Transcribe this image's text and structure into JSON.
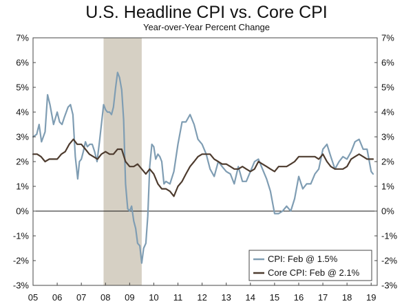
{
  "chart_data": {
    "type": "line",
    "title": "U.S. Headline CPI vs. Core CPI",
    "subtitle": "Year-over-Year Percent Change",
    "xlabel": "",
    "ylabel": "",
    "xlim": [
      2005.0,
      2019.25
    ],
    "ylim": [
      -3,
      7
    ],
    "y_ticks": [
      7,
      6,
      5,
      4,
      3,
      2,
      1,
      0,
      -1,
      -2,
      -3
    ],
    "y_tick_labels_left": [
      "7%",
      "6%",
      "5%",
      "4%",
      "3%",
      "2%",
      "1%",
      "0%",
      "-1%",
      "-2%",
      "-3%"
    ],
    "y_tick_labels_right": [
      "7%",
      "6%",
      "5%",
      "4%",
      "3%",
      "2%",
      "1%",
      "0%",
      "-1%",
      "-2%",
      "-3%"
    ],
    "x_ticks": [
      2005,
      2006,
      2007,
      2008,
      2009,
      2010,
      2011,
      2012,
      2013,
      2014,
      2015,
      2016,
      2017,
      2018,
      2019
    ],
    "x_tick_labels": [
      "05",
      "06",
      "07",
      "08",
      "09",
      "10",
      "11",
      "12",
      "13",
      "14",
      "15",
      "16",
      "17",
      "18",
      "19"
    ],
    "recession": {
      "start": 2007.92,
      "end": 2009.5,
      "color": "#d6d0c4"
    },
    "legend_position": "bottom-right",
    "series": [
      {
        "name": "CPI: Feb @ 1.5%",
        "color": "#7f9db3",
        "x": [
          2005.0,
          2005.15,
          2005.25,
          2005.35,
          2005.5,
          2005.6,
          2005.7,
          2005.85,
          2006.0,
          2006.1,
          2006.2,
          2006.3,
          2006.45,
          2006.55,
          2006.65,
          2006.75,
          2006.85,
          2006.92,
          2007.0,
          2007.08,
          2007.17,
          2007.25,
          2007.35,
          2007.45,
          2007.55,
          2007.65,
          2007.75,
          2007.83,
          2007.92,
          2008.0,
          2008.08,
          2008.17,
          2008.25,
          2008.33,
          2008.42,
          2008.5,
          2008.58,
          2008.67,
          2008.75,
          2008.83,
          2008.92,
          2009.0,
          2009.08,
          2009.17,
          2009.25,
          2009.33,
          2009.42,
          2009.5,
          2009.58,
          2009.67,
          2009.75,
          2009.83,
          2009.92,
          2010.0,
          2010.08,
          2010.17,
          2010.25,
          2010.33,
          2010.42,
          2010.5,
          2010.67,
          2010.83,
          2011.0,
          2011.17,
          2011.33,
          2011.5,
          2011.67,
          2011.83,
          2012.0,
          2012.17,
          2012.33,
          2012.5,
          2012.67,
          2012.83,
          2013.0,
          2013.17,
          2013.33,
          2013.5,
          2013.67,
          2013.83,
          2014.0,
          2014.17,
          2014.33,
          2014.5,
          2014.67,
          2014.83,
          2015.0,
          2015.17,
          2015.33,
          2015.5,
          2015.67,
          2015.83,
          2016.0,
          2016.17,
          2016.33,
          2016.5,
          2016.67,
          2016.83,
          2017.0,
          2017.17,
          2017.33,
          2017.5,
          2017.67,
          2017.83,
          2018.0,
          2018.17,
          2018.33,
          2018.5,
          2018.67,
          2018.83,
          2019.0,
          2019.08
        ],
        "values": [
          3.0,
          3.1,
          3.5,
          2.8,
          3.2,
          4.7,
          4.3,
          3.5,
          4.0,
          3.6,
          3.5,
          3.8,
          4.2,
          4.3,
          3.9,
          2.2,
          1.3,
          2.0,
          2.1,
          2.4,
          2.8,
          2.6,
          2.7,
          2.7,
          2.4,
          2.0,
          2.8,
          3.5,
          4.3,
          4.1,
          4.0,
          4.0,
          3.9,
          4.2,
          5.0,
          5.6,
          5.4,
          4.9,
          3.7,
          1.1,
          0.1,
          0.0,
          0.2,
          -0.4,
          -0.7,
          -1.3,
          -1.4,
          -2.1,
          -1.5,
          -1.3,
          -0.2,
          1.8,
          2.7,
          2.6,
          2.1,
          2.3,
          2.2,
          2.0,
          1.1,
          1.2,
          1.1,
          1.6,
          2.7,
          3.6,
          3.6,
          3.9,
          3.5,
          2.9,
          2.7,
          2.3,
          1.7,
          1.4,
          2.0,
          1.8,
          1.6,
          1.5,
          1.1,
          1.8,
          1.2,
          1.2,
          1.6,
          2.0,
          2.1,
          1.7,
          1.3,
          0.8,
          -0.1,
          -0.1,
          0.0,
          0.2,
          0.0,
          0.5,
          1.4,
          0.9,
          1.1,
          1.1,
          1.5,
          1.7,
          2.5,
          2.7,
          2.2,
          1.7,
          2.0,
          2.2,
          2.1,
          2.4,
          2.8,
          2.9,
          2.5,
          2.5,
          1.6,
          1.5
        ]
      },
      {
        "name": "Core CPI: Feb @ 2.1%",
        "color": "#4d3b2e",
        "x": [
          2005.0,
          2005.17,
          2005.33,
          2005.5,
          2005.67,
          2005.83,
          2006.0,
          2006.17,
          2006.33,
          2006.5,
          2006.67,
          2006.83,
          2007.0,
          2007.17,
          2007.33,
          2007.5,
          2007.67,
          2007.83,
          2008.0,
          2008.17,
          2008.33,
          2008.5,
          2008.67,
          2008.83,
          2009.0,
          2009.17,
          2009.33,
          2009.5,
          2009.67,
          2009.83,
          2010.0,
          2010.17,
          2010.33,
          2010.5,
          2010.67,
          2010.83,
          2011.0,
          2011.17,
          2011.33,
          2011.5,
          2011.67,
          2011.83,
          2012.0,
          2012.17,
          2012.33,
          2012.5,
          2012.67,
          2012.83,
          2013.0,
          2013.17,
          2013.33,
          2013.5,
          2013.67,
          2013.83,
          2014.0,
          2014.17,
          2014.33,
          2014.5,
          2014.67,
          2014.83,
          2015.0,
          2015.17,
          2015.33,
          2015.5,
          2015.67,
          2015.83,
          2016.0,
          2016.17,
          2016.33,
          2016.5,
          2016.67,
          2016.83,
          2017.0,
          2017.17,
          2017.33,
          2017.5,
          2017.67,
          2017.83,
          2018.0,
          2018.17,
          2018.33,
          2018.5,
          2018.67,
          2018.83,
          2019.0,
          2019.08
        ],
        "values": [
          2.3,
          2.3,
          2.2,
          2.0,
          2.1,
          2.1,
          2.1,
          2.3,
          2.4,
          2.7,
          2.9,
          2.7,
          2.7,
          2.5,
          2.3,
          2.2,
          2.1,
          2.3,
          2.4,
          2.3,
          2.3,
          2.5,
          2.5,
          2.0,
          1.8,
          1.8,
          1.9,
          1.7,
          1.5,
          1.7,
          1.5,
          1.1,
          0.9,
          0.9,
          0.8,
          0.6,
          1.0,
          1.2,
          1.5,
          1.8,
          2.0,
          2.2,
          2.3,
          2.3,
          2.3,
          2.1,
          2.0,
          1.9,
          1.9,
          1.8,
          1.7,
          1.7,
          1.8,
          1.7,
          1.6,
          1.7,
          2.0,
          1.9,
          1.8,
          1.7,
          1.6,
          1.8,
          1.8,
          1.8,
          1.9,
          2.0,
          2.2,
          2.2,
          2.2,
          2.2,
          2.2,
          2.1,
          2.3,
          2.0,
          1.8,
          1.7,
          1.7,
          1.7,
          1.8,
          2.1,
          2.2,
          2.3,
          2.2,
          2.1,
          2.1,
          2.1
        ]
      }
    ]
  }
}
